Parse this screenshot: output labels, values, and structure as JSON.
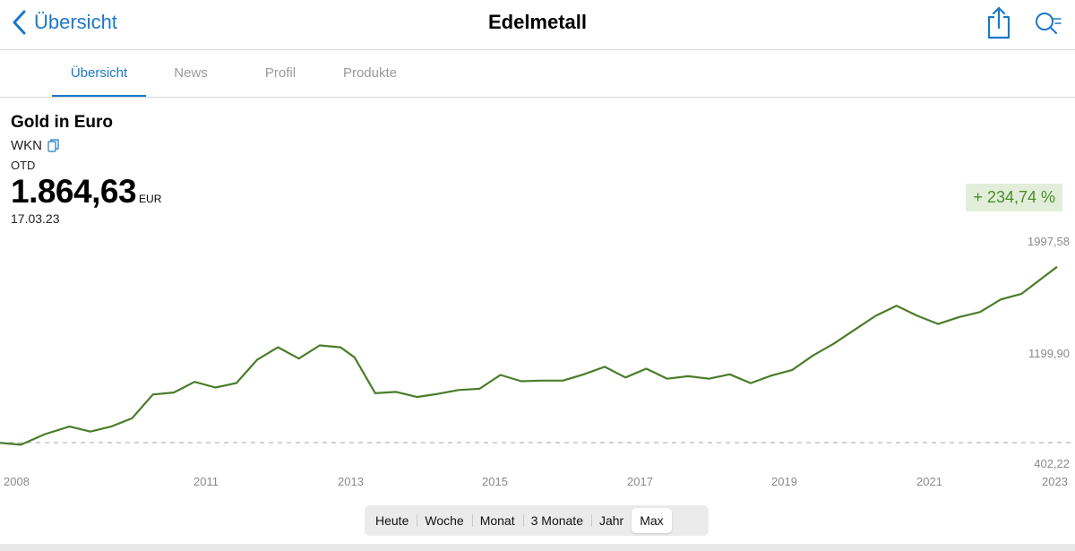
{
  "nav": {
    "back_label": "Übersicht",
    "title": "Edelmetall",
    "icons": [
      "share-icon",
      "search-icon"
    ],
    "accent_color": "#1a78c9"
  },
  "tabs": [
    {
      "label": "Übersicht",
      "active": true
    },
    {
      "label": "News",
      "active": false
    },
    {
      "label": "Profil",
      "active": false
    },
    {
      "label": "Produkte",
      "active": false
    }
  ],
  "instrument": {
    "name": "Gold in Euro",
    "wkn_label": "WKN",
    "exchange": "OTD",
    "price": "1.864,63",
    "currency": "EUR",
    "date": "17.03.23",
    "change": "+ 234,74 %",
    "change_color": "#4a8b2c"
  },
  "chart_data": {
    "type": "line",
    "line_color": "#4a7d2a",
    "y_tick_labels": [
      "1997,58",
      "1199,90",
      "402,22"
    ],
    "y_ticks": [
      1997.58,
      1199.9,
      402.22
    ],
    "ylim": [
      402.22,
      1997.58
    ],
    "baseline": 402.22,
    "x_tick_labels": [
      "2008",
      "2011",
      "2013",
      "2015",
      "2017",
      "2019",
      "2021",
      "2023"
    ],
    "xlim": [
      2008.0,
      2023.21
    ],
    "series": [
      {
        "x": [
          2008.0,
          2008.3,
          2008.65,
          2009.0,
          2009.3,
          2009.6,
          2009.9,
          2010.2,
          2010.5,
          2010.8,
          2011.1,
          2011.4,
          2011.7,
          2012.0,
          2012.3,
          2012.6,
          2012.9,
          2013.1,
          2013.4,
          2013.7,
          2014.0,
          2014.3,
          2014.6,
          2014.9,
          2015.2,
          2015.5,
          2015.8,
          2016.1,
          2016.4,
          2016.7,
          2017.0,
          2017.3,
          2017.6,
          2017.9,
          2018.2,
          2018.5,
          2018.8,
          2019.1,
          2019.4,
          2019.7,
          2020.0,
          2020.3,
          2020.6,
          2020.9,
          2021.2,
          2021.5,
          2021.8,
          2022.1,
          2022.4,
          2022.7,
          2023.21
        ],
        "values": [
          400,
          385,
          470,
          530,
          490,
          530,
          595,
          785,
          800,
          885,
          840,
          875,
          1060,
          1160,
          1070,
          1175,
          1160,
          1080,
          795,
          805,
          765,
          790,
          820,
          830,
          940,
          890,
          895,
          895,
          945,
          1005,
          920,
          990,
          910,
          930,
          910,
          945,
          875,
          935,
          980,
          1095,
          1190,
          1300,
          1410,
          1490,
          1410,
          1345,
          1400,
          1440,
          1540,
          1585,
          1800
        ]
      }
    ]
  },
  "range_buttons": [
    {
      "label": "Heute",
      "active": false
    },
    {
      "label": "Woche",
      "active": false
    },
    {
      "label": "Monat",
      "active": false
    },
    {
      "label": "3 Monate",
      "active": false
    },
    {
      "label": "Jahr",
      "active": false
    },
    {
      "label": "Max",
      "active": true
    }
  ]
}
